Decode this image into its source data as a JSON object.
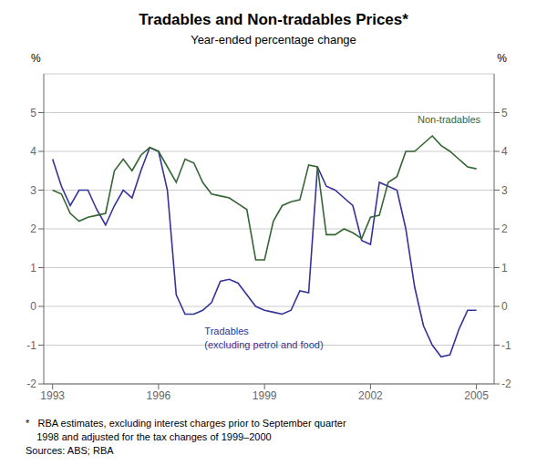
{
  "chart_data": {
    "type": "line",
    "title": "Tradables and Non-tradables Prices*",
    "subtitle": "Year-ended percentage change",
    "ylabel": "%",
    "y2label": "%",
    "x": [
      1993.0,
      1993.25,
      1993.5,
      1993.75,
      1994.0,
      1994.25,
      1994.5,
      1994.75,
      1995.0,
      1995.25,
      1995.5,
      1995.75,
      1996.0,
      1996.25,
      1996.5,
      1996.75,
      1997.0,
      1997.25,
      1997.5,
      1997.75,
      1998.0,
      1998.25,
      1998.5,
      1998.75,
      1999.0,
      1999.25,
      1999.5,
      1999.75,
      2000.0,
      2000.25,
      2000.5,
      2000.75,
      2001.0,
      2001.25,
      2001.5,
      2001.75,
      2002.0,
      2002.25,
      2002.5,
      2002.75,
      2003.0,
      2003.25,
      2003.5,
      2003.75,
      2004.0,
      2004.25,
      2004.5,
      2004.75,
      2005.0
    ],
    "series": [
      {
        "name": "Tradables",
        "color": "#333399",
        "values": [
          3.8,
          3.1,
          2.6,
          3.0,
          3.0,
          2.5,
          2.1,
          2.6,
          3.0,
          2.8,
          3.5,
          4.1,
          4.0,
          3.0,
          0.3,
          -0.2,
          -0.2,
          -0.1,
          0.1,
          0.65,
          0.7,
          0.6,
          0.3,
          0.0,
          -0.1,
          -0.15,
          -0.2,
          -0.1,
          0.4,
          0.35,
          3.6,
          3.1,
          3.0,
          2.8,
          2.6,
          1.7,
          1.6,
          3.2,
          3.1,
          3.0,
          2.0,
          0.5,
          -0.5,
          -1.0,
          -1.3,
          -1.25,
          -0.6,
          -0.1,
          -0.1
        ]
      },
      {
        "name": "Non-tradables",
        "color": "#336633",
        "values": [
          3.0,
          2.9,
          2.4,
          2.2,
          2.3,
          2.35,
          2.4,
          3.5,
          3.8,
          3.5,
          3.9,
          4.1,
          4.0,
          3.6,
          3.2,
          3.8,
          3.7,
          3.2,
          2.9,
          2.85,
          2.8,
          2.65,
          2.5,
          1.2,
          1.2,
          2.2,
          2.6,
          2.7,
          2.75,
          3.65,
          3.6,
          1.85,
          1.85,
          2.0,
          1.9,
          1.75,
          2.3,
          2.35,
          3.2,
          3.35,
          4.0,
          4.0,
          4.2,
          4.4,
          4.15,
          4.0,
          3.8,
          3.6,
          3.55
        ]
      }
    ],
    "annotations": [
      "(excluding petrol and food)"
    ],
    "footnotes": [
      "*   RBA estimates, excluding interest charges prior to September quarter",
      "    1998 and adjusted for the tax changes of 1999–2000",
      "Sources: ABS; RBA"
    ],
    "xlim": [
      1992.75,
      2005.5
    ],
    "xticks": [
      1993,
      1996,
      1999,
      2002,
      2005
    ],
    "ylim": [
      -2,
      6
    ],
    "yticks": [
      -2,
      -1,
      0,
      1,
      2,
      3,
      4,
      5
    ],
    "y2lim": [
      -2,
      6
    ],
    "y2ticks": [
      -2,
      -1,
      0,
      1,
      2,
      3,
      4,
      5
    ],
    "grid": true
  }
}
